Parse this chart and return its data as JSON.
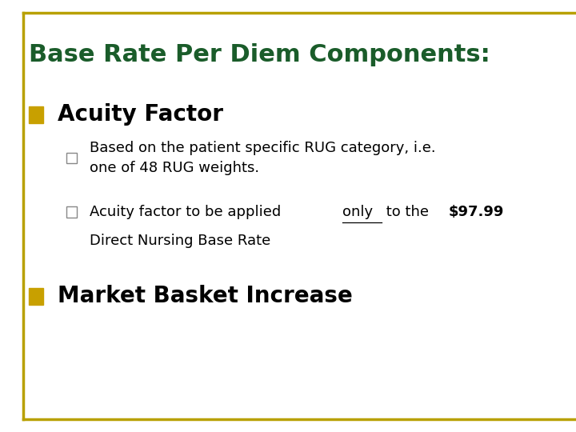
{
  "title": "Base Rate Per Diem Components:",
  "title_color": "#1a5c2a",
  "title_fontsize": 22,
  "background_color": "#ffffff",
  "border_color": "#b8a000",
  "bullet1_text": "Acuity Factor",
  "bullet1_color": "#000000",
  "bullet1_marker_color": "#c8a000",
  "bullet1_fontsize": 20,
  "sub_bullet1_text": "Based on the patient specific RUG category, i.e.\none of 48 RUG weights.",
  "sub_bullet2_text_plain": "Acuity factor to be applied ",
  "sub_bullet2_underline": "only",
  "sub_bullet2_middle": " to the ",
  "sub_bullet2_bold": "$97.99",
  "sub_bullet2_line2": "Direct Nursing Base Rate",
  "sub_bullet_fontsize": 13,
  "sub_bullet_color": "#000000",
  "sub_bullet_marker_color": "#888888",
  "bullet2_text": "Market Basket Increase",
  "bullet2_color": "#000000",
  "bullet2_marker_color": "#c8a000",
  "bullet2_fontsize": 20
}
